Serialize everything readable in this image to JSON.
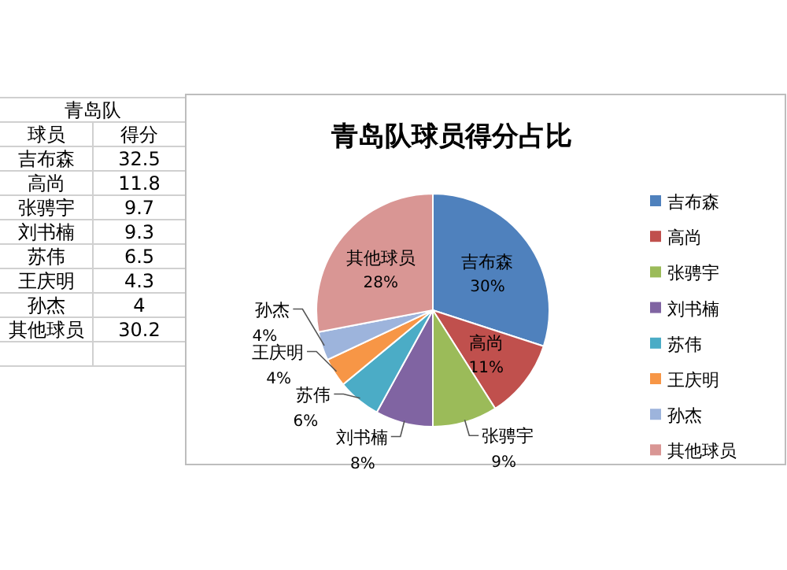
{
  "chart_data": [
    {
      "type": "other",
      "title": "青岛队",
      "annotations": [
        "球员",
        "得分",
        "吉布森",
        "32.5",
        "高尚",
        "11.8",
        "张骋宇",
        "9.7",
        "刘书楠",
        "9.3",
        "苏伟",
        "6.5",
        "王庆明",
        "4.3",
        "孙杰",
        "4",
        "其他球员",
        "30.2"
      ]
    },
    {
      "type": "pie",
      "title": "青岛队球员得分占比",
      "categories": [
        "吉布森",
        "高尚",
        "张骋宇",
        "刘书楠",
        "苏伟",
        "王庆明",
        "孙杰",
        "其他球员"
      ],
      "values": [
        30,
        11,
        9,
        8,
        6,
        4,
        4,
        28
      ],
      "value_labels": [
        "30%",
        "11%",
        "9%",
        "8%",
        "6%",
        "4%",
        "4%",
        "28%"
      ],
      "colors": [
        "#4f81bd",
        "#c0504d",
        "#9bbb59",
        "#8064a2",
        "#4bacc6",
        "#f79646",
        "#9db4dc",
        "#d99694"
      ],
      "legend": "right"
    }
  ]
}
